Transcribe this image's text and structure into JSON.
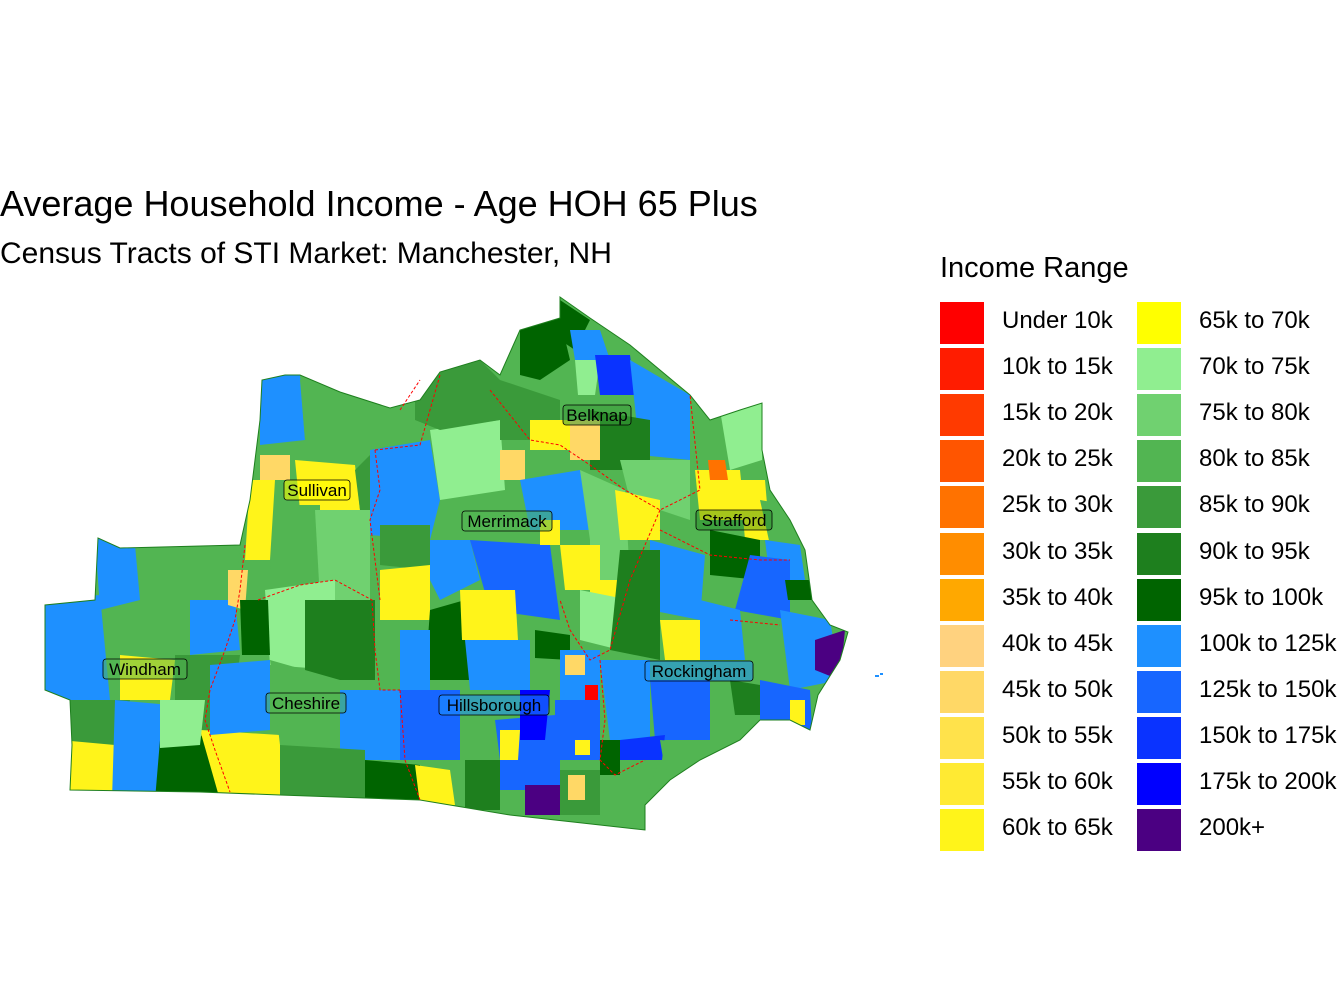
{
  "title": "Average Household Income - Age HOH 65 Plus",
  "subtitle": "Census Tracts of STI Market: Manchester, NH",
  "legend": {
    "title": "Income Range",
    "items": [
      {
        "label": "Under 10k",
        "color": "#FF0000"
      },
      {
        "label": "10k to 15k",
        "color": "#FF1C00"
      },
      {
        "label": "15k to 20k",
        "color": "#FF3A00"
      },
      {
        "label": "20k to 25k",
        "color": "#FF5500"
      },
      {
        "label": "25k to 30k",
        "color": "#FF7200"
      },
      {
        "label": "30k to 35k",
        "color": "#FF8D00"
      },
      {
        "label": "35k to 40k",
        "color": "#FFA800"
      },
      {
        "label": "40k to 45k",
        "color": "#FFD27F"
      },
      {
        "label": "45k to 50k",
        "color": "#FFD866"
      },
      {
        "label": "50k to 55k",
        "color": "#FFE24B"
      },
      {
        "label": "55k to 60k",
        "color": "#FFEA33"
      },
      {
        "label": "60k to 65k",
        "color": "#FFF41A"
      },
      {
        "label": "65k to 70k",
        "color": "#FFFF00"
      },
      {
        "label": "70k to 75k",
        "color": "#90EE90"
      },
      {
        "label": "75k to 80k",
        "color": "#70D170"
      },
      {
        "label": "80k to 85k",
        "color": "#52B552"
      },
      {
        "label": "85k to 90k",
        "color": "#3A9A3A"
      },
      {
        "label": "90k to 95k",
        "color": "#1E7F1E"
      },
      {
        "label": "95k to 100k",
        "color": "#006400"
      },
      {
        "label": "100k to 125k",
        "color": "#1E90FF"
      },
      {
        "label": "125k to 150k",
        "color": "#1766FF"
      },
      {
        "label": "150k to 175k",
        "color": "#0A33FF"
      },
      {
        "label": "175k to 200k",
        "color": "#0000FF"
      },
      {
        "label": "200k+",
        "color": "#4B0082"
      }
    ]
  },
  "counties": [
    {
      "name": "Sullivan"
    },
    {
      "name": "Belknap"
    },
    {
      "name": "Merrimack"
    },
    {
      "name": "Strafford"
    },
    {
      "name": "Windham"
    },
    {
      "name": "Rockingham"
    },
    {
      "name": "Cheshire"
    },
    {
      "name": "Hillsborough"
    }
  ]
}
